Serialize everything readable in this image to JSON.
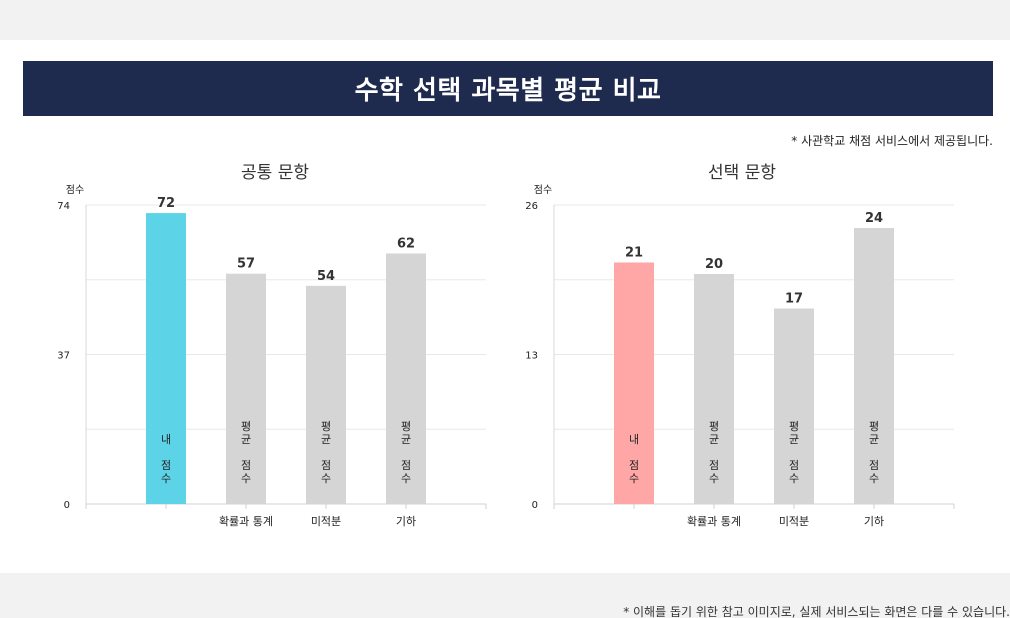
{
  "page": {
    "title": "수학 선택 과목별 평균 비교",
    "source_note": "* 사관학교 채점 서비스에서 제공됩니다.",
    "footer_note": "* 이해를 돕기 위한 참고 이미지로, 실제 서비스되는 화면은 다를 수 있습니다."
  },
  "chart_data": [
    {
      "type": "bar",
      "title": "공통 문항",
      "ylabel": "점수",
      "ylim": [
        0,
        74
      ],
      "yticks": [
        0,
        37,
        74
      ],
      "categories": [
        "",
        "확률과 통계",
        "미적분",
        "기하"
      ],
      "values": [
        72,
        57,
        54,
        62
      ],
      "bar_labels": [
        "내 점수",
        "평균 점수",
        "평균 점수",
        "평균 점수"
      ],
      "colors": [
        "#5dd3e8",
        "#d5d5d5",
        "#d5d5d5",
        "#d5d5d5"
      ],
      "grid": true
    },
    {
      "type": "bar",
      "title": "선택 문항",
      "ylabel": "점수",
      "ylim": [
        0,
        26
      ],
      "yticks": [
        0,
        13,
        26
      ],
      "categories": [
        "",
        "확률과 통계",
        "미적분",
        "기하"
      ],
      "values": [
        21,
        20,
        17,
        24
      ],
      "bar_labels": [
        "내 점수",
        "평균 점수",
        "평균 점수",
        "평균 점수"
      ],
      "colors": [
        "#ffa6a6",
        "#d5d5d5",
        "#d5d5d5",
        "#d5d5d5"
      ],
      "grid": true
    }
  ]
}
